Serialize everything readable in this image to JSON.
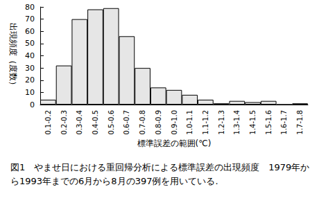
{
  "chart_data": {
    "type": "bar",
    "caption": "図1　やませ日における重回帰分析による標準誤差の出現頻度　1979年から1993年までの6月から8月の397例を用いている.",
    "xlabel": "標準誤差の範囲(℃)",
    "ylabel": "出現頻度（度数）",
    "categories": [
      "0.1-0.2",
      "0.2-0.3",
      "0.3-0.4",
      "0.4-0.5",
      "0.5-0.6",
      "0.6-0.7",
      "0.7-0.8",
      "0.8-0.9",
      "0.9-1.0",
      "1.0-1.1",
      "1.1-1.2",
      "1.2-1.3",
      "1.3-1.4",
      "1.4-1.5",
      "1.5-1.6",
      "1.6-1.7",
      "1.7-1.8"
    ],
    "values": [
      4,
      32,
      70,
      78,
      79,
      56,
      30,
      14,
      12,
      8,
      4,
      1,
      3,
      2,
      3,
      0,
      1
    ],
    "color": "#e6e6e6",
    "ylim": [
      0,
      80
    ],
    "yticks": [
      0,
      10,
      20,
      30,
      40,
      50,
      60,
      70,
      80
    ],
    "grid": false
  }
}
